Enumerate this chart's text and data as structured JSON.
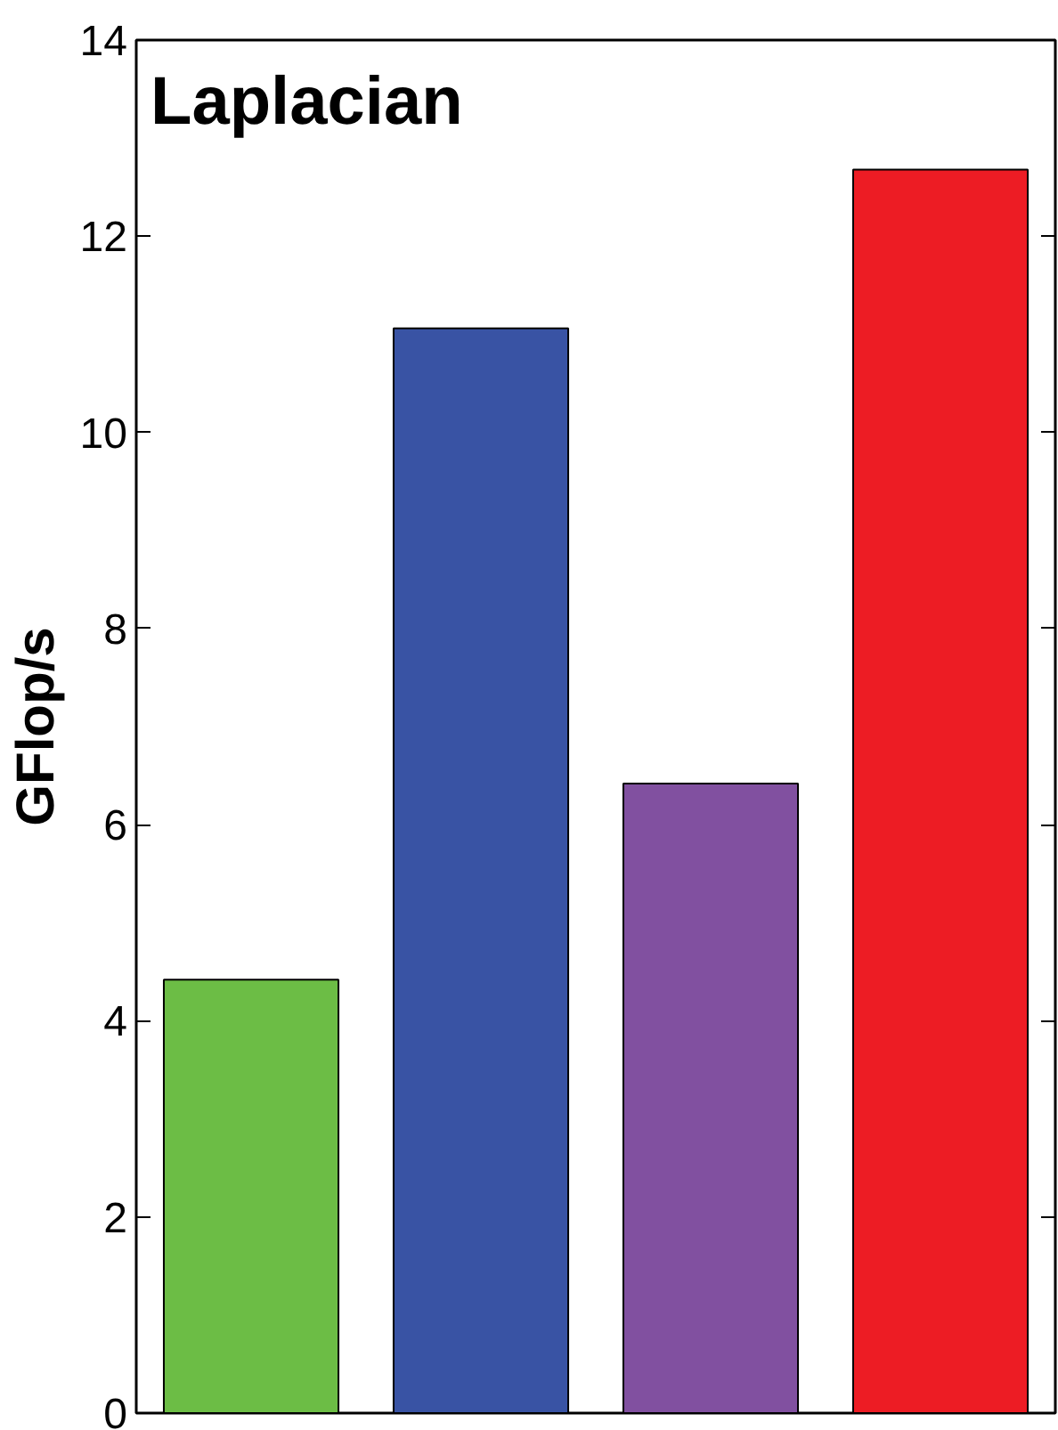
{
  "chart_data": {
    "type": "bar",
    "title": "Laplacian",
    "ylabel": "GFlop/s",
    "categories": [
      null,
      null,
      null,
      null
    ],
    "values": [
      4.42,
      11.06,
      6.42,
      12.68
    ],
    "colors": [
      "#6cbd45",
      "#3953a4",
      "#8150a0",
      "#ed1c24"
    ],
    "ylim": [
      0,
      14
    ],
    "yticks": [
      0,
      2,
      4,
      6,
      8,
      10,
      12,
      14
    ],
    "grid": false
  }
}
